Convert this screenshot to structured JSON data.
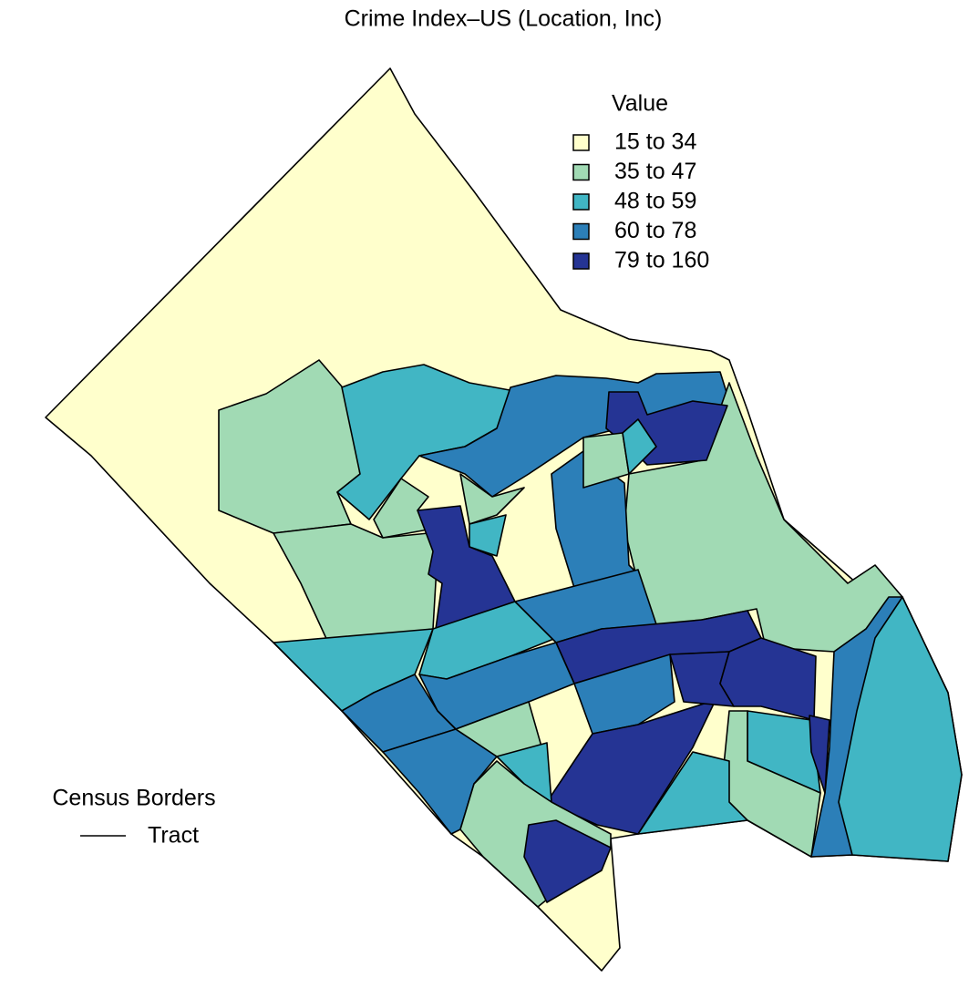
{
  "title": "Crime Index–US (Location, Inc)",
  "legend": {
    "title": "Value",
    "items": [
      {
        "label": "15 to 34",
        "color": "#ffffcc"
      },
      {
        "label": "35 to 47",
        "color": "#a1dab4"
      },
      {
        "label": "48 to 59",
        "color": "#41b6c4"
      },
      {
        "label": "60 to 78",
        "color": "#2c7fb8"
      },
      {
        "label": "79 to 160",
        "color": "#253494"
      }
    ]
  },
  "borders_legend": {
    "title": "Census Borders",
    "label": "Tract"
  }
}
